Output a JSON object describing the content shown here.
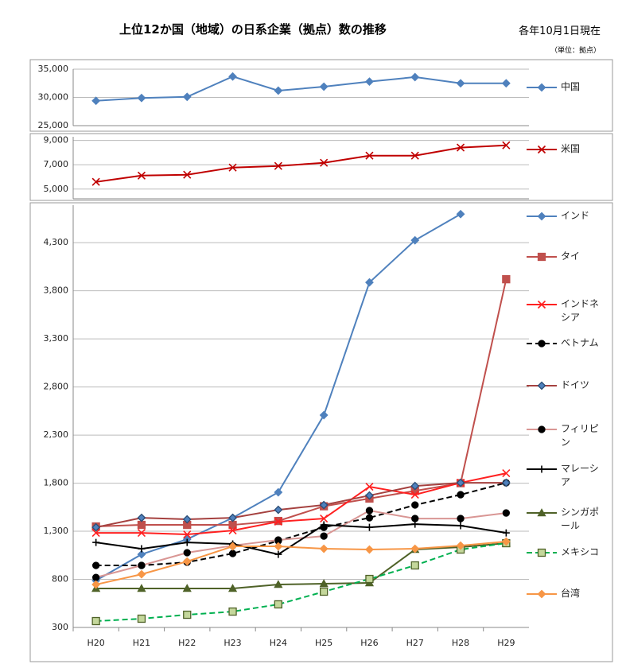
{
  "chart_data": [
    {
      "type": "line",
      "title": "上位12か国（地域）の日系企業（拠点）数の推移",
      "subtitle": "各年10月1日現在",
      "note": "（単位：拠点）",
      "ylim": [
        25000,
        35000
      ],
      "yticks": [
        {
          "value": 25000,
          "label": "25,000"
        },
        {
          "value": 30000,
          "label": "30,000"
        },
        {
          "value": 35000,
          "label": "35,000"
        }
      ],
      "grid": true,
      "series": [
        {
          "name": "中国",
          "color": "#4f81bd",
          "marker": "diamond",
          "marker_fill": "#4f81bd",
          "dash": false,
          "values": [
            29400,
            29900,
            30100,
            33700,
            31200,
            31900,
            32800,
            33600,
            32500,
            32500
          ]
        }
      ]
    },
    {
      "type": "line",
      "ylim": [
        4200,
        9300
      ],
      "yticks": [
        {
          "value": 5000,
          "label": "5,000"
        },
        {
          "value": 7000,
          "label": "7,000"
        },
        {
          "value": 9000,
          "label": "9,000"
        }
      ],
      "grid": true,
      "series": [
        {
          "name": "米国",
          "color": "#c00000",
          "marker": "x",
          "marker_fill": "#c00000",
          "dash": false,
          "values": [
            5590,
            6110,
            6180,
            6770,
            6900,
            7160,
            7750,
            7750,
            8410,
            8600
          ]
        }
      ]
    },
    {
      "type": "line",
      "categories": [
        "H20",
        "H21",
        "H22",
        "H23",
        "H24",
        "H25",
        "H26",
        "H27",
        "H28",
        "H29"
      ],
      "ylim": [
        300,
        4690
      ],
      "yticks": [
        300,
        800,
        {
          "value": 1300,
          "label": "1,300"
        },
        {
          "value": 1800,
          "label": "1,800"
        },
        {
          "value": 2300,
          "label": "2,300"
        },
        {
          "value": 2800,
          "label": "2,800"
        },
        {
          "value": 3300,
          "label": "3,300"
        },
        {
          "value": 3800,
          "label": "3,800"
        },
        {
          "value": 4300,
          "label": "4,300"
        }
      ],
      "grid": true,
      "series": [
        {
          "name": "インド",
          "color": "#4f81bd",
          "marker": "diamond",
          "marker_fill": "#4f81bd",
          "dash": false,
          "values": [
            788,
            1060,
            1217,
            1440,
            1705,
            2507,
            3887,
            4325,
            4597,
            null
          ]
        },
        {
          "name": "タイ",
          "color": "#c0504d",
          "marker": "square",
          "marker_fill": "#c0504d",
          "dash": false,
          "values": [
            1350,
            1366,
            1366,
            1366,
            1407,
            1560,
            1640,
            1720,
            1800,
            3920
          ]
        },
        {
          "name": "インドネシア",
          "color": "#ff2020",
          "marker": "x",
          "marker_fill": "#ff2020",
          "dash": false,
          "values": [
            1283,
            1283,
            1267,
            1308,
            1400,
            1432,
            1763,
            1680,
            1804,
            1903
          ]
        },
        {
          "name": "ベトナム",
          "color": "#000000",
          "marker": "circle",
          "marker_fill": "#000000",
          "dash": true,
          "values": [
            945,
            945,
            978,
            1069,
            1200,
            1341,
            1440,
            1573,
            1680,
            1804
          ]
        },
        {
          "name": "ドイツ",
          "color": "#a5413f",
          "marker": "diamond",
          "marker_fill": "#4f81bd",
          "dash": false,
          "values": [
            1341,
            1440,
            1424,
            1440,
            1523,
            1573,
            1672,
            1771,
            1804,
            1804
          ]
        },
        {
          "name": "フィリピン",
          "color": "#d99694",
          "marker": "circle",
          "marker_fill": "#000000",
          "dash": false,
          "values": [
            820,
            945,
            1077,
            1151,
            1209,
            1250,
            1515,
            1432,
            1432,
            1490
          ]
        },
        {
          "name": "マレーシア",
          "color": "#000000",
          "marker": "plus",
          "marker_fill": "#000000",
          "dash": false,
          "values": [
            1184,
            1118,
            1184,
            1168,
            1060,
            1366,
            1341,
            1374,
            1358,
            1283
          ]
        },
        {
          "name": "シンガポール",
          "color": "#4f6228",
          "marker": "triangle",
          "marker_fill": "#4f6228",
          "dash": false,
          "values": [
            705,
            705,
            705,
            705,
            746,
            755,
            763,
            1110,
            1135,
            1176
          ]
        },
        {
          "name": "メキシコ",
          "color": "#00b050",
          "marker": "square",
          "marker_fill": "#c4d79b",
          "dash": true,
          "values": [
            366,
            391,
            432,
            465,
            540,
            672,
            804,
            945,
            1110,
            1176
          ]
        },
        {
          "name": "台湾",
          "color": "#f79646",
          "marker": "diamond",
          "marker_fill": "#f79646",
          "dash": false,
          "values": [
            746,
            853,
            986,
            1143,
            1143,
            1118,
            1110,
            1118,
            1151,
            1193
          ]
        }
      ]
    }
  ]
}
